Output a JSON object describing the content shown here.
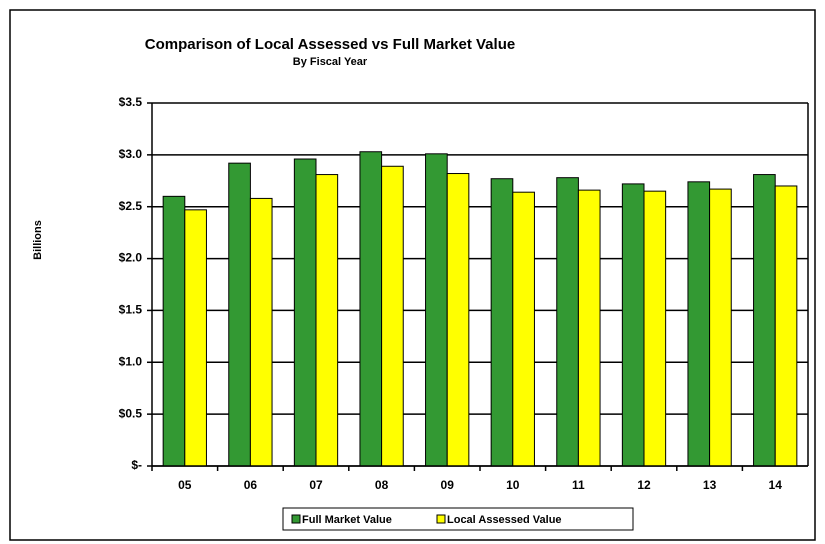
{
  "chart_data": {
    "type": "bar",
    "title": "Comparison of Local Assessed vs Full Market Value",
    "subtitle": "By Fiscal Year",
    "y_label": "Billions",
    "categories": [
      "05",
      "06",
      "07",
      "08",
      "09",
      "10",
      "11",
      "12",
      "13",
      "14"
    ],
    "series": [
      {
        "name": "Full Market Value",
        "color": "#339933",
        "values": [
          2.6,
          2.92,
          2.96,
          3.03,
          3.01,
          2.77,
          2.78,
          2.72,
          2.74,
          2.81
        ]
      },
      {
        "name": "Local Assessed Value",
        "color": "#ffff00",
        "values": [
          2.47,
          2.58,
          2.81,
          2.89,
          2.82,
          2.64,
          2.66,
          2.65,
          2.67,
          2.7
        ]
      }
    ],
    "ylim": [
      0,
      3.5
    ],
    "yticks": [
      {
        "value": 0,
        "label": "$-"
      },
      {
        "value": 0.5,
        "label": "$0.5"
      },
      {
        "value": 1,
        "label": "$1.0"
      },
      {
        "value": 1.5,
        "label": "$1.5"
      },
      {
        "value": 2,
        "label": "$2.0"
      },
      {
        "value": 2.5,
        "label": "$2.5"
      },
      {
        "value": 3,
        "label": "$3.0"
      },
      {
        "value": 3.5,
        "label": "$3.5"
      }
    ],
    "grid": true,
    "legend": "bottom"
  }
}
